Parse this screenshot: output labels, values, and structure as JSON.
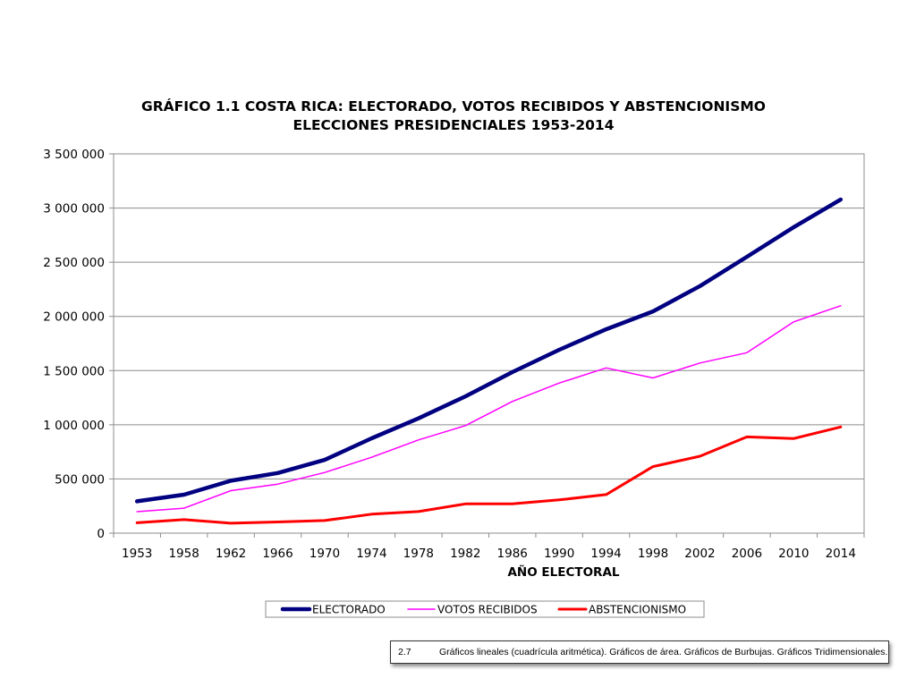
{
  "chart_data": {
    "type": "line",
    "title": "GRÁFICO 1.1 COSTA RICA: ELECTORADO, VOTOS RECIBIDOS Y ABSTENCIONISMO",
    "subtitle": "ELECCIONES PRESIDENCIALES 1953-2014",
    "xlabel": "AÑO ELECTORAL",
    "ylabel": "",
    "categories": [
      "1953",
      "1958",
      "1962",
      "1966",
      "1970",
      "1974",
      "1978",
      "1982",
      "1986",
      "1990",
      "1994",
      "1998",
      "2002",
      "2006",
      "2010",
      "2014"
    ],
    "y_ticks": [
      "0",
      "500 000",
      "1 000 000",
      "1 500 000",
      "2 000 000",
      "2 500 000",
      "3 000 000",
      "3 500 000"
    ],
    "ylim": [
      0,
      3500000
    ],
    "grid": true,
    "legend_position": "bottom",
    "series": [
      {
        "name": "ELECTORADO",
        "color": "#000080",
        "values": [
          294000,
          355000,
          484000,
          555000,
          676000,
          875000,
          1059000,
          1262000,
          1486000,
          1692000,
          1881000,
          2046000,
          2280000,
          2550000,
          2823000,
          3078000
        ]
      },
      {
        "name": "VOTOS RECIBIDOS",
        "color": "#ff00ff",
        "values": [
          198000,
          230000,
          392000,
          452000,
          560000,
          700000,
          860000,
          992000,
          1215000,
          1385000,
          1525000,
          1432000,
          1570000,
          1665000,
          1950000,
          2098000
        ]
      },
      {
        "name": "ABSTENCIONISMO",
        "color": "#ff0000",
        "values": [
          96000,
          125000,
          92000,
          103000,
          116000,
          175000,
          199000,
          270000,
          271000,
          307000,
          356000,
          614000,
          710000,
          888000,
          873000,
          980000
        ]
      }
    ]
  },
  "footer": {
    "number": "2.7",
    "text": "Gráficos lineales (cuadrícula aritmética). Gráficos de área. Gráficos de Burbujas. Gráficos Tridimensionales."
  }
}
